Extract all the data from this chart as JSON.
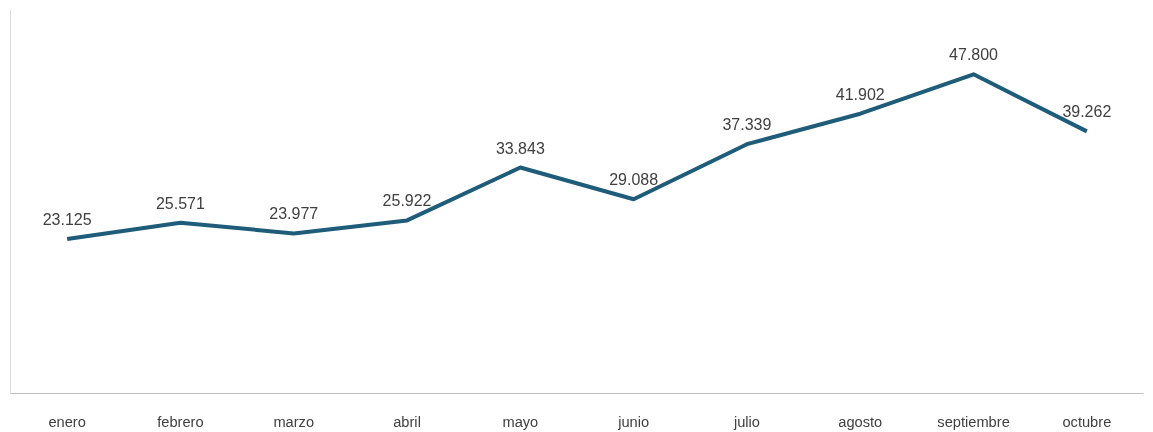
{
  "chart_data": {
    "type": "line",
    "categories": [
      "enero",
      "febrero",
      "marzo",
      "abril",
      "mayo",
      "junio",
      "julio",
      "agosto",
      "septiembre",
      "octubre"
    ],
    "series": [
      {
        "color": "#1f5c7a",
        "values": [
          23125,
          25571,
          23977,
          25922,
          33843,
          29088,
          37339,
          41902,
          47800,
          39262
        ],
        "value_labels": [
          "23.125",
          "25.571",
          "23.977",
          "25.922",
          "33.843",
          "29.088",
          "37.339",
          "41.902",
          "47.800",
          "39.262"
        ]
      }
    ],
    "grid": false,
    "marker": "none",
    "line_style": "solid"
  }
}
